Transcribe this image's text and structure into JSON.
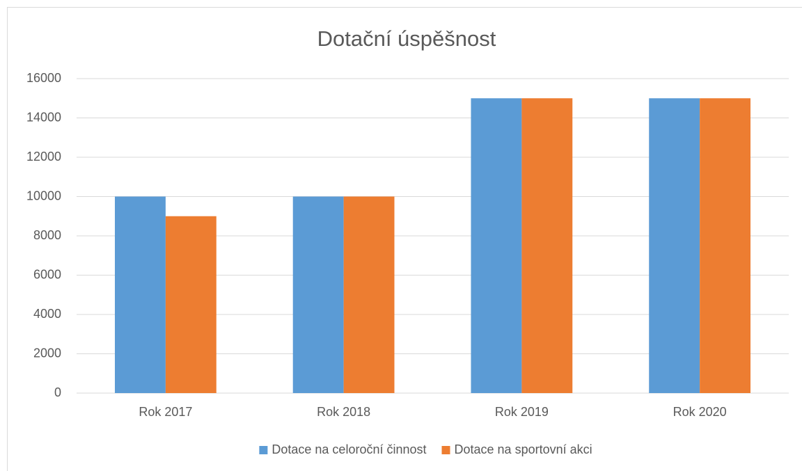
{
  "chart_data": {
    "type": "bar",
    "title": "Dotační úspěšnost",
    "categories": [
      "Rok 2017",
      "Rok 2018",
      "Rok 2019",
      "Rok 2020"
    ],
    "series": [
      {
        "name": "Dotace na celoroční činnost",
        "color": "#5b9bd5",
        "values": [
          10000,
          10000,
          15000,
          15000
        ]
      },
      {
        "name": "Dotace na sportovní akci",
        "color": "#ed7d31",
        "values": [
          9000,
          10000,
          15000,
          15000
        ]
      }
    ],
    "ylim": [
      0,
      16000
    ],
    "yticks": [
      0,
      2000,
      4000,
      6000,
      8000,
      10000,
      12000,
      14000,
      16000
    ],
    "grid": true,
    "legend": "bottom"
  }
}
